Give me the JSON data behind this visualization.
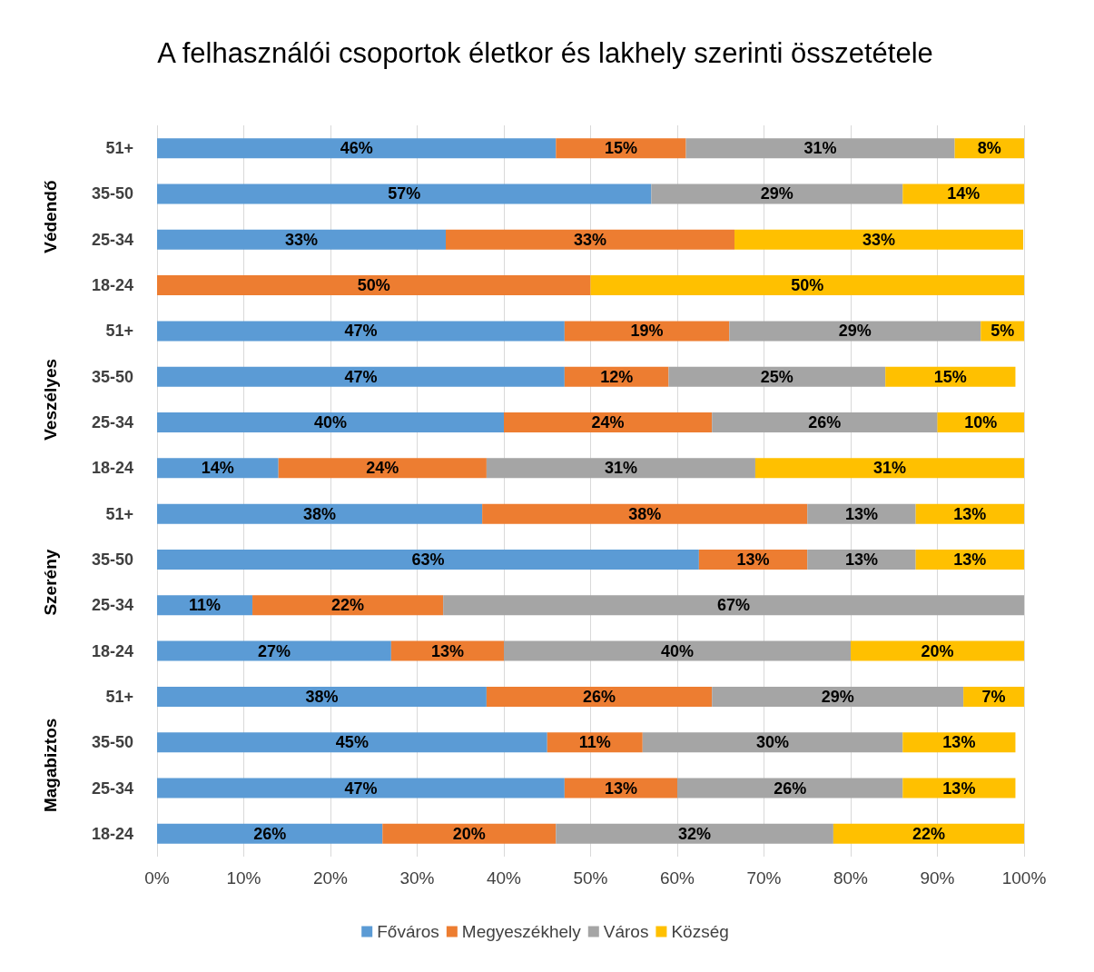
{
  "chart_data": {
    "type": "bar",
    "orientation": "horizontal",
    "stacked": true,
    "title": "A felhasználói csoportok életkor és lakhely szerinti összetétele",
    "categories": [
      "51+",
      "35-50",
      "25-34",
      "18-24",
      "51+",
      "35-50",
      "25-34",
      "18-24",
      "51+",
      "35-50",
      "25-34",
      "18-24",
      "51+",
      "35-50",
      "25-34",
      "18-24"
    ],
    "annotations": [
      "Védendő",
      "Veszélyes",
      "Szerény",
      "Magabiztos"
    ],
    "series": [
      {
        "name": "Főváros",
        "color": "#5b9bd5",
        "values": [
          46,
          57,
          33.3,
          0,
          47,
          47,
          40,
          14,
          37.5,
          62.5,
          11,
          27,
          38,
          45,
          47,
          26
        ],
        "value_labels": [
          "46%",
          "57%",
          "33%",
          null,
          "47%",
          "47%",
          "40%",
          "14%",
          "38%",
          "63%",
          "11%",
          "27%",
          "38%",
          "45%",
          "47%",
          "26%"
        ]
      },
      {
        "name": "Megyeszékhely",
        "color": "#ed7d31",
        "values": [
          15,
          0,
          33.3,
          50,
          19,
          12,
          24,
          24,
          37.5,
          12.5,
          22,
          13,
          26,
          11,
          13,
          20
        ],
        "value_labels": [
          "15%",
          null,
          "33%",
          "50%",
          "19%",
          "12%",
          "24%",
          "24%",
          "38%",
          "13%",
          "22%",
          "13%",
          "26%",
          "11%",
          "13%",
          "20%"
        ]
      },
      {
        "name": "Város",
        "color": "#a5a5a5",
        "values": [
          31,
          29,
          0,
          0,
          29,
          25,
          26,
          31,
          12.5,
          12.5,
          67,
          40,
          29,
          30,
          26,
          32
        ],
        "value_labels": [
          "31%",
          "29%",
          null,
          null,
          "29%",
          "25%",
          "26%",
          "31%",
          "13%",
          "13%",
          "67%",
          "40%",
          "29%",
          "30%",
          "26%",
          "32%"
        ]
      },
      {
        "name": "Község",
        "color": "#ffc000",
        "values": [
          8,
          14,
          33.3,
          50,
          5,
          15,
          10,
          31,
          12.5,
          12.5,
          0,
          20,
          7,
          13,
          13,
          22
        ],
        "value_labels": [
          "8%",
          "14%",
          "33%",
          "50%",
          "5%",
          "15%",
          "10%",
          "31%",
          "13%",
          "13%",
          null,
          "20%",
          "7%",
          "13%",
          "13%",
          "22%"
        ]
      }
    ],
    "xlim": [
      0,
      100
    ],
    "xticks": [
      {
        "value": 0,
        "label": "0%"
      },
      {
        "value": 10,
        "label": "10%"
      },
      {
        "value": 20,
        "label": "20%"
      },
      {
        "value": 30,
        "label": "30%"
      },
      {
        "value": 40,
        "label": "40%"
      },
      {
        "value": 50,
        "label": "50%"
      },
      {
        "value": 60,
        "label": "60%"
      },
      {
        "value": 70,
        "label": "70%"
      },
      {
        "value": 80,
        "label": "80%"
      },
      {
        "value": 90,
        "label": "90%"
      },
      {
        "value": 100,
        "label": "100%"
      }
    ],
    "grid": "x",
    "legend": "bottom"
  }
}
